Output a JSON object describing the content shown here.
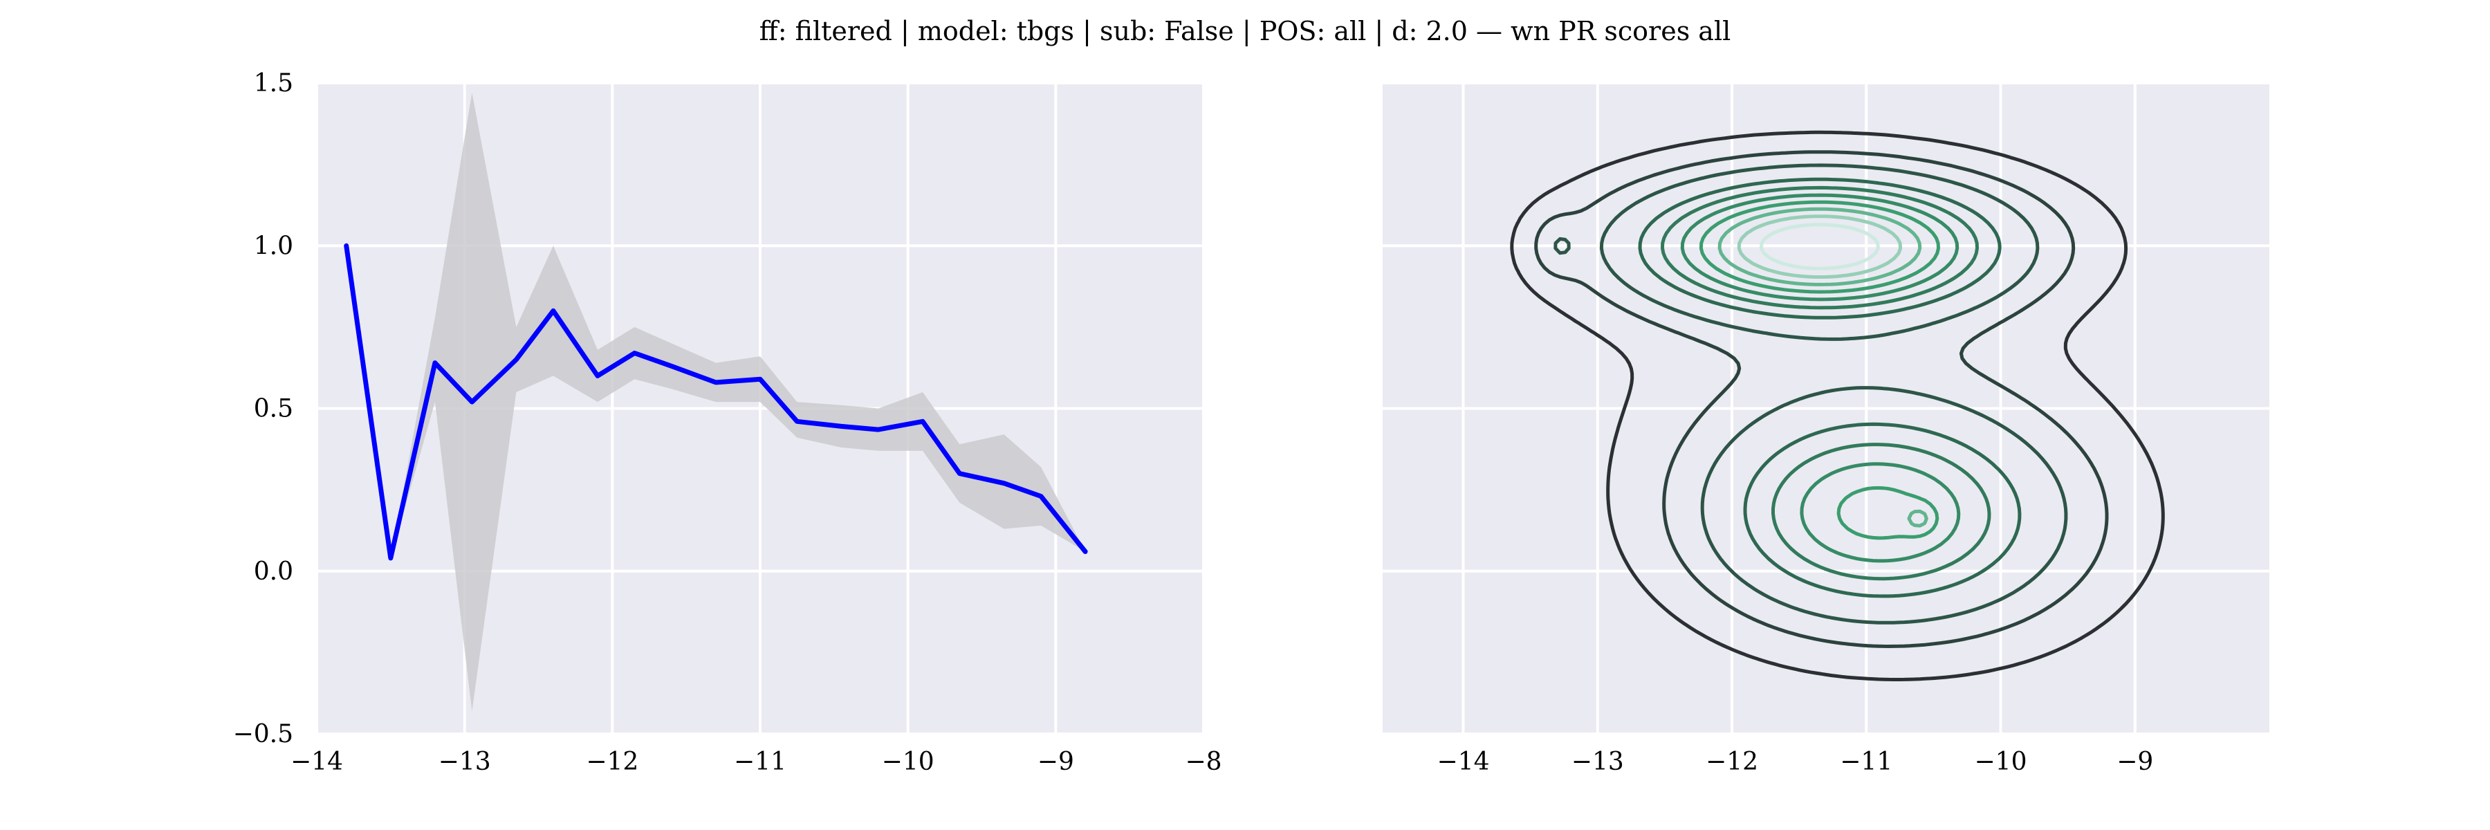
{
  "title": "ff: filtered | model: tbgs | sub: False | POS: all | d: 2.0 — wn PR scores all",
  "colors": {
    "axes_bg": "#EAEAF2",
    "grid": "#FFFFFF",
    "line": "#0000FF",
    "band": "#C8C8CC",
    "contour_outer": "#2B3033",
    "contour_mid": "#2E6B52",
    "contour_inner": "#3CA272",
    "contour_core": "#CDEAE0"
  },
  "chart_data": [
    {
      "type": "line",
      "title": "",
      "xlabel": "",
      "ylabel": "",
      "xlim": [
        -14,
        -8
      ],
      "ylim": [
        -0.5,
        1.5
      ],
      "xticks": [
        -14,
        -13,
        -12,
        -11,
        -10,
        -9,
        -8
      ],
      "yticks": [
        -0.5,
        0.0,
        0.5,
        1.0,
        1.5
      ],
      "xtick_labels": [
        "−14",
        "−13",
        "−12",
        "−11",
        "−10",
        "−9",
        "−8"
      ],
      "ytick_labels": [
        "−0.5",
        "0.0",
        "0.5",
        "1.0",
        "1.5"
      ],
      "grid": true,
      "series": [
        {
          "x": [
            -13.8,
            -13.5,
            -13.2,
            -12.95,
            -12.65,
            -12.4,
            -12.1,
            -11.85,
            -11.6,
            -11.3,
            -11.0,
            -10.75,
            -10.45,
            -10.2,
            -9.9,
            -9.65,
            -9.35,
            -9.1,
            -8.8
          ],
          "y": [
            1.0,
            0.04,
            0.64,
            0.52,
            0.65,
            0.8,
            0.6,
            0.67,
            0.63,
            0.58,
            0.59,
            0.46,
            0.445,
            0.435,
            0.46,
            0.3,
            0.27,
            0.23,
            0.06
          ],
          "lower": [
            1.0,
            0.04,
            0.52,
            -0.43,
            0.55,
            0.6,
            0.52,
            0.59,
            0.56,
            0.52,
            0.52,
            0.41,
            0.38,
            0.37,
            0.37,
            0.21,
            0.13,
            0.14,
            0.06
          ],
          "upper": [
            1.0,
            0.04,
            0.78,
            1.47,
            0.75,
            1.0,
            0.68,
            0.75,
            0.7,
            0.64,
            0.66,
            0.52,
            0.51,
            0.5,
            0.55,
            0.39,
            0.42,
            0.32,
            0.06
          ]
        }
      ]
    },
    {
      "type": "contour",
      "title": "",
      "xlabel": "",
      "ylabel": "",
      "xlim": [
        -14.6,
        -8.0
      ],
      "ylim": [
        -0.5,
        1.5
      ],
      "xticks": [
        -14,
        -13,
        -12,
        -11,
        -10,
        -9
      ],
      "yticks": [
        -0.5,
        0.0,
        0.5,
        1.0,
        1.5
      ],
      "xtick_labels": [
        "−14",
        "−13",
        "−12",
        "−11",
        "−10",
        "−9"
      ],
      "grid": true,
      "density_components": [
        {
          "cx": -11.35,
          "cy": 1.0,
          "sx": 0.85,
          "sy": 0.13,
          "w": 1.0
        },
        {
          "cx": -11.0,
          "cy": 0.17,
          "sx": 0.75,
          "sy": 0.2,
          "w": 0.55
        },
        {
          "cx": -10.6,
          "cy": 0.16,
          "sx": 0.08,
          "sy": 0.03,
          "w": 0.14
        },
        {
          "cx": -13.3,
          "cy": 1.0,
          "sx": 0.12,
          "sy": 0.06,
          "w": 0.1
        },
        {
          "cx": -11.2,
          "cy": 0.55,
          "sx": 1.0,
          "sy": 0.3,
          "w": 0.08
        },
        {
          "cx": -10.1,
          "cy": 0.15,
          "sx": 0.7,
          "sy": 0.22,
          "w": 0.12
        }
      ],
      "levels": [
        0.03,
        0.09,
        0.17,
        0.3,
        0.4,
        0.5,
        0.6,
        0.7,
        0.8,
        0.9
      ]
    }
  ]
}
